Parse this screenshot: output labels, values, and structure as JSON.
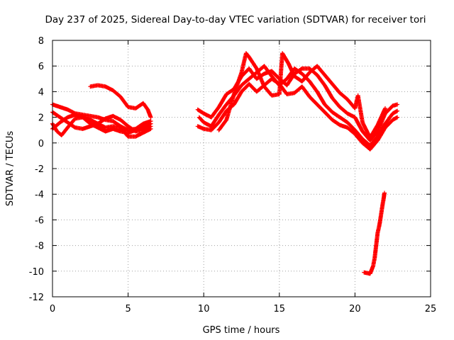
{
  "chart_data": {
    "type": "scatter",
    "title": "Day 237 of 2025, Sidereal Day-to-day VTEC variation (SDTVAR) for receiver tori",
    "xlabel": "GPS time / hours",
    "ylabel": "SDTVAR / TECUs",
    "xlim": [
      0,
      25
    ],
    "ylim": [
      -12,
      8
    ],
    "x_ticks": [
      "0",
      "5",
      "10",
      "15",
      "20",
      "25"
    ],
    "y_ticks": [
      "8",
      "6",
      "4",
      "2",
      "0",
      "-2",
      "-4",
      "-6",
      "-8",
      "-10",
      "-12"
    ],
    "grid": true,
    "marker": "+",
    "series_color": "#ff0000",
    "series": [
      {
        "points": [
          [
            0,
            3.0
          ],
          [
            0.5,
            2.8
          ],
          [
            1,
            2.6
          ],
          [
            1.5,
            2.3
          ],
          [
            2,
            2.2
          ],
          [
            2.5,
            2.1
          ],
          [
            3,
            2.0
          ],
          [
            3.5,
            1.8
          ],
          [
            4,
            1.7
          ],
          [
            4.5,
            1.3
          ],
          [
            5,
            1.0
          ],
          [
            5.5,
            1.1
          ],
          [
            6,
            1.5
          ],
          [
            6.5,
            1.7
          ]
        ]
      },
      {
        "points": [
          [
            0,
            2.4
          ],
          [
            0.5,
            2.0
          ],
          [
            1,
            1.6
          ],
          [
            1.5,
            1.2
          ],
          [
            2,
            1.1
          ],
          [
            2.5,
            1.3
          ],
          [
            3,
            1.5
          ],
          [
            3.5,
            1.9
          ],
          [
            4,
            2.1
          ],
          [
            4.5,
            1.8
          ],
          [
            5,
            1.3
          ],
          [
            5.5,
            0.9
          ],
          [
            6,
            1.0
          ],
          [
            6.5,
            1.3
          ]
        ]
      },
      {
        "points": [
          [
            0,
            1.5
          ],
          [
            0.3,
            0.9
          ],
          [
            0.6,
            0.6
          ],
          [
            1,
            1.2
          ],
          [
            1.5,
            1.9
          ],
          [
            2,
            2.0
          ],
          [
            2.5,
            1.8
          ],
          [
            3,
            1.5
          ],
          [
            3.5,
            1.2
          ],
          [
            4,
            1.3
          ],
          [
            4.5,
            1.2
          ],
          [
            5,
            0.5
          ],
          [
            5.5,
            0.5
          ],
          [
            6,
            0.8
          ],
          [
            6.5,
            1.1
          ]
        ]
      },
      {
        "points": [
          [
            0,
            1.1
          ],
          [
            0.5,
            1.6
          ],
          [
            1,
            2.0
          ],
          [
            1.5,
            2.2
          ],
          [
            2,
            2.0
          ],
          [
            2.5,
            1.5
          ],
          [
            3,
            1.2
          ],
          [
            3.5,
            0.9
          ],
          [
            4,
            1.1
          ],
          [
            4.5,
            0.9
          ],
          [
            5,
            0.8
          ],
          [
            5.5,
            1.0
          ],
          [
            6,
            1.2
          ],
          [
            6.5,
            1.5
          ]
        ]
      },
      {
        "points": [
          [
            2.5,
            4.4
          ],
          [
            3,
            4.5
          ],
          [
            3.5,
            4.4
          ],
          [
            4,
            4.1
          ],
          [
            4.5,
            3.6
          ],
          [
            5,
            2.8
          ],
          [
            5.5,
            2.7
          ],
          [
            6,
            3.1
          ],
          [
            6.3,
            2.6
          ],
          [
            6.5,
            2.0
          ]
        ]
      },
      {
        "points": [
          [
            9.6,
            2.6
          ],
          [
            10,
            2.3
          ],
          [
            10.5,
            2.0
          ],
          [
            11,
            2.8
          ],
          [
            11.5,
            3.8
          ],
          [
            12,
            4.2
          ],
          [
            12.5,
            5.2
          ],
          [
            13,
            5.8
          ],
          [
            13.5,
            5.0
          ],
          [
            14,
            5.4
          ],
          [
            14.5,
            5.6
          ],
          [
            15,
            5.0
          ],
          [
            15.5,
            4.5
          ],
          [
            16,
            5.4
          ],
          [
            16.5,
            5.8
          ],
          [
            17,
            5.8
          ],
          [
            17.5,
            5.3
          ],
          [
            18,
            4.5
          ],
          [
            18.5,
            3.5
          ],
          [
            19,
            2.8
          ],
          [
            19.5,
            2.3
          ],
          [
            20,
            2.0
          ],
          [
            20.5,
            0.9
          ],
          [
            21,
            0.2
          ],
          [
            21.5,
            0.9
          ],
          [
            22,
            2.3
          ],
          [
            22.5,
            2.9
          ],
          [
            22.8,
            3.0
          ]
        ]
      },
      {
        "points": [
          [
            9.7,
            2.0
          ],
          [
            10,
            1.6
          ],
          [
            10.5,
            1.3
          ],
          [
            11,
            2.2
          ],
          [
            11.5,
            3.0
          ],
          [
            12,
            3.7
          ],
          [
            12.5,
            4.5
          ],
          [
            13,
            5.0
          ],
          [
            13.5,
            5.5
          ],
          [
            14,
            6.0
          ],
          [
            14.5,
            5.2
          ],
          [
            15,
            4.5
          ],
          [
            15.5,
            5.0
          ],
          [
            16,
            5.8
          ],
          [
            16.5,
            5.4
          ],
          [
            17,
            4.8
          ],
          [
            17.5,
            4.0
          ],
          [
            18,
            3.0
          ],
          [
            18.5,
            2.4
          ],
          [
            19,
            2.0
          ],
          [
            19.5,
            1.6
          ],
          [
            20,
            1.0
          ],
          [
            20.5,
            0.3
          ],
          [
            21,
            -0.2
          ],
          [
            21.5,
            0.5
          ],
          [
            22,
            1.5
          ],
          [
            22.5,
            2.3
          ],
          [
            22.8,
            2.5
          ]
        ]
      },
      {
        "points": [
          [
            9.6,
            1.3
          ],
          [
            10,
            1.1
          ],
          [
            10.5,
            1.0
          ],
          [
            11,
            1.6
          ],
          [
            11.5,
            2.5
          ],
          [
            12,
            3.0
          ],
          [
            12.5,
            4.0
          ],
          [
            13,
            4.6
          ],
          [
            13.5,
            4.0
          ],
          [
            14,
            4.5
          ],
          [
            14.5,
            5.0
          ],
          [
            15,
            4.6
          ],
          [
            15.5,
            3.8
          ],
          [
            16,
            3.9
          ],
          [
            16.5,
            4.4
          ],
          [
            17,
            3.6
          ],
          [
            17.5,
            3.0
          ],
          [
            18,
            2.4
          ],
          [
            18.5,
            1.8
          ],
          [
            19,
            1.4
          ],
          [
            19.5,
            1.2
          ],
          [
            20,
            0.7
          ],
          [
            20.5,
            0.0
          ],
          [
            21,
            -0.5
          ],
          [
            21.5,
            0.2
          ],
          [
            22,
            1.2
          ],
          [
            22.5,
            1.8
          ],
          [
            22.8,
            2.0
          ]
        ]
      },
      {
        "points": [
          [
            11,
            1.0
          ],
          [
            11.5,
            1.8
          ],
          [
            12,
            3.8
          ],
          [
            12.5,
            5.5
          ],
          [
            12.8,
            7.0
          ],
          [
            13,
            6.7
          ],
          [
            13.5,
            5.8
          ],
          [
            14,
            4.4
          ],
          [
            14.5,
            3.7
          ],
          [
            15,
            3.8
          ],
          [
            15.2,
            7.0
          ],
          [
            15.6,
            6.2
          ],
          [
            16,
            5.2
          ],
          [
            16.5,
            4.8
          ],
          [
            17,
            5.5
          ],
          [
            17.5,
            6.0
          ],
          [
            18,
            5.3
          ],
          [
            18.5,
            4.6
          ],
          [
            19,
            3.9
          ],
          [
            19.5,
            3.4
          ],
          [
            20,
            2.7
          ],
          [
            20.2,
            3.7
          ],
          [
            20.5,
            1.6
          ],
          [
            21,
            0.4
          ],
          [
            21.5,
            1.4
          ],
          [
            22,
            2.7
          ]
        ]
      },
      {
        "points": [
          [
            20.6,
            -10.1
          ],
          [
            21,
            -10.2
          ],
          [
            21.2,
            -9.6
          ],
          [
            21.3,
            -9.0
          ],
          [
            21.4,
            -8.0
          ],
          [
            21.5,
            -7.0
          ],
          [
            21.6,
            -6.5
          ],
          [
            21.7,
            -5.8
          ],
          [
            21.8,
            -5.0
          ],
          [
            21.9,
            -4.3
          ],
          [
            21.95,
            -3.9
          ]
        ]
      }
    ]
  }
}
